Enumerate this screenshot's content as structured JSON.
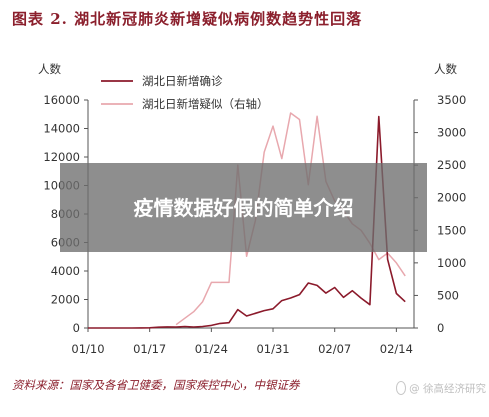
{
  "title": "图表 2. 湖北新冠肺炎新增疑似病例数趋势性回落",
  "overlay_text": "疫情数据好假的简单介绍",
  "source": "资料来源：国家及各省卫健委，国家疾控中心，中银证券",
  "watermark": "@ 徐高经济研究",
  "colors": {
    "confirmed": "#8b1a2b",
    "suspected": "#e8a8ae",
    "title": "#8b1f2c",
    "axis": "#555555"
  },
  "chart_data": {
    "type": "line",
    "y_unit_left": "人数",
    "y_unit_right": "人数",
    "ylim_left": [
      0,
      16000
    ],
    "ylim_right": [
      0,
      3500
    ],
    "yticks_left": [
      "0",
      "2000",
      "4000",
      "6000",
      "8000",
      "10000",
      "12000",
      "14000",
      "16000"
    ],
    "yticks_right": [
      "0",
      "500",
      "1000",
      "1500",
      "2000",
      "2500",
      "3000",
      "3500"
    ],
    "xticks": [
      "01/10",
      "01/17",
      "01/24",
      "01/31",
      "02/07",
      "02/14"
    ],
    "legend_position": "top-center",
    "series": [
      {
        "name": "湖北日新增确诊",
        "axis": "left",
        "x": [
          "01/10",
          "01/11",
          "01/12",
          "01/13",
          "01/14",
          "01/15",
          "01/16",
          "01/17",
          "01/18",
          "01/19",
          "01/20",
          "01/21",
          "01/22",
          "01/23",
          "01/24",
          "01/25",
          "01/26",
          "01/27",
          "01/28",
          "01/29",
          "01/30",
          "01/31",
          "02/01",
          "02/02",
          "02/03",
          "02/04",
          "02/05",
          "02/06",
          "02/07",
          "02/08",
          "02/09",
          "02/10",
          "02/11",
          "02/12",
          "02/13",
          "02/14",
          "02/15"
        ],
        "values": [
          0,
          0,
          0,
          0,
          0,
          0,
          4,
          17,
          59,
          77,
          72,
          105,
          69,
          105,
          180,
          323,
          371,
          1291,
          840,
          1032,
          1220,
          1347,
          1921,
          2103,
          2345,
          3156,
          2987,
          2447,
          2841,
          2147,
          2618,
          2097,
          1638,
          14840,
          4823,
          2420,
          1843
        ]
      },
      {
        "name": "湖北日新增疑似（右轴）",
        "axis": "right",
        "x": [
          "01/20",
          "01/21",
          "01/22",
          "01/23",
          "01/24",
          "01/25",
          "01/26",
          "01/27",
          "01/28",
          "01/29",
          "01/30",
          "01/31",
          "02/01",
          "02/02",
          "02/03",
          "02/04",
          "02/05",
          "02/06",
          "02/07",
          "02/08",
          "02/09",
          "02/10",
          "02/11",
          "02/12",
          "02/13",
          "02/14",
          "02/15"
        ],
        "values": [
          50,
          150,
          250,
          400,
          700,
          700,
          700,
          2500,
          1100,
          1650,
          2700,
          3100,
          2600,
          3300,
          3200,
          2200,
          3250,
          2250,
          1950,
          1800,
          1600,
          1500,
          1300,
          1050,
          1150,
          1000,
          800
        ]
      }
    ]
  }
}
